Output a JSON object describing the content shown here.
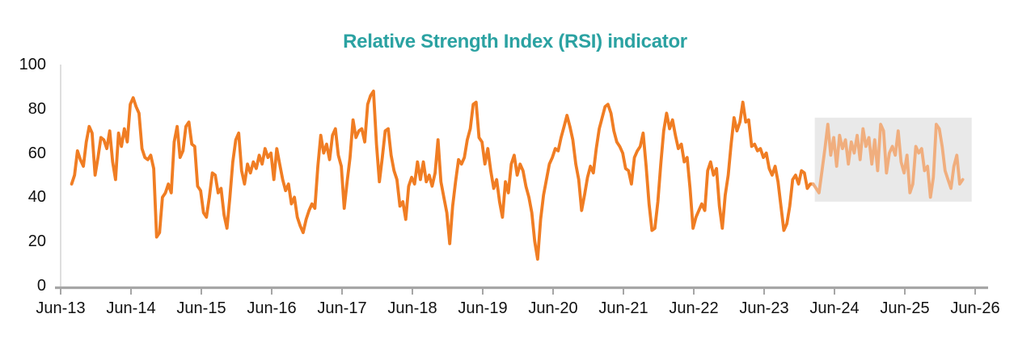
{
  "title": {
    "text": "Relative Strength Index (RSI) indicator",
    "color": "#2BA2A2"
  },
  "axes": {
    "x_axis_line_color": "#A6A6A6",
    "y_axis_line_color": "#D9D9D9",
    "tick_color": "#A6A6A6",
    "label_color": "#111111"
  },
  "chart_data": {
    "type": "line",
    "title": "Relative Strength Index (RSI) indicator",
    "xlabel": "",
    "ylabel": "",
    "ylim": [
      0,
      100
    ],
    "y_ticks": [
      0,
      20,
      40,
      60,
      80,
      100
    ],
    "x_tick_labels": [
      "Jun-13",
      "Jun-14",
      "Jun-15",
      "Jun-16",
      "Jun-17",
      "Jun-18",
      "Jun-19",
      "Jun-20",
      "Jun-21",
      "Jun-22",
      "Jun-23",
      "Jun-24",
      "Jun-25",
      "Jun-26"
    ],
    "grid": false,
    "legend": "none",
    "points_per_year": 24,
    "start_offset_years": 0.156,
    "series": [
      {
        "name": "RSI (historical)",
        "color": "#F07D23",
        "start_index": 0,
        "values": [
          46,
          50,
          61,
          57,
          54,
          65,
          72,
          69,
          50,
          58,
          67,
          66,
          62,
          70,
          56,
          48,
          69,
          63,
          71,
          65,
          82,
          85,
          81,
          78,
          62,
          58,
          57,
          59,
          53,
          22,
          24,
          40,
          42,
          46,
          42,
          65,
          72,
          58,
          61,
          72,
          74,
          64,
          63,
          45,
          43,
          33,
          31,
          40,
          51,
          50,
          42,
          44,
          32,
          26,
          40,
          56,
          66,
          69,
          52,
          46,
          55,
          51,
          56,
          53,
          59,
          55,
          62,
          58,
          60,
          48,
          62,
          55,
          48,
          43,
          46,
          37,
          40,
          31,
          27,
          24,
          30,
          34,
          37,
          35,
          54,
          68,
          60,
          64,
          57,
          68,
          71,
          59,
          54,
          35,
          47,
          58,
          75,
          67,
          70,
          71,
          65,
          82,
          86,
          88,
          64,
          47,
          58,
          70,
          71,
          59,
          52,
          48,
          36,
          38,
          30,
          45,
          49,
          46,
          56,
          48,
          56,
          47,
          50,
          45,
          51,
          66,
          47,
          40,
          33,
          19,
          36,
          47,
          57,
          55,
          58,
          66,
          71,
          82,
          83,
          67,
          65,
          55,
          62,
          52,
          44,
          48,
          38,
          31,
          47,
          42,
          55,
          59,
          50,
          55,
          52,
          45,
          40,
          33,
          20,
          12,
          30,
          41,
          48,
          55,
          58,
          62,
          61,
          67,
          72,
          77,
          72,
          66,
          55,
          48,
          34,
          41,
          49,
          54,
          51,
          62,
          71,
          76,
          81,
          82,
          78,
          70,
          65,
          63,
          60,
          53,
          52,
          46,
          58,
          61,
          63,
          69,
          54,
          37,
          25,
          26,
          38,
          55,
          70,
          78,
          71,
          75,
          68,
          62,
          64,
          56,
          58,
          44,
          26,
          31,
          34,
          37,
          34,
          52,
          56,
          50,
          53,
          36,
          26,
          41,
          50,
          64,
          76,
          70,
          74,
          83,
          74,
          75,
          63,
          64,
          61,
          62,
          58,
          60,
          53,
          50,
          54,
          47,
          36,
          25,
          28,
          36,
          48,
          50,
          46,
          52,
          51,
          44,
          46,
          46
        ]
      },
      {
        "name": "RSI (forecast)",
        "color": "#F0AE7E",
        "start_index": 253,
        "values": [
          46,
          44,
          42,
          52,
          62,
          73,
          59,
          67,
          54,
          68,
          62,
          66,
          55,
          65,
          60,
          68,
          57,
          71,
          63,
          67,
          55,
          66,
          52,
          73,
          70,
          51,
          60,
          63,
          59,
          70,
          56,
          51,
          59,
          42,
          46,
          63,
          60,
          62,
          52,
          54,
          40,
          49,
          73,
          71,
          63,
          52,
          48,
          44,
          54,
          59,
          46,
          48
        ]
      }
    ],
    "forecast_region": {
      "fill": "#E9E9E9",
      "start_year_offset": 10.72,
      "end_year_offset": 12.95,
      "rsi_low": 38,
      "rsi_high": 76
    }
  }
}
